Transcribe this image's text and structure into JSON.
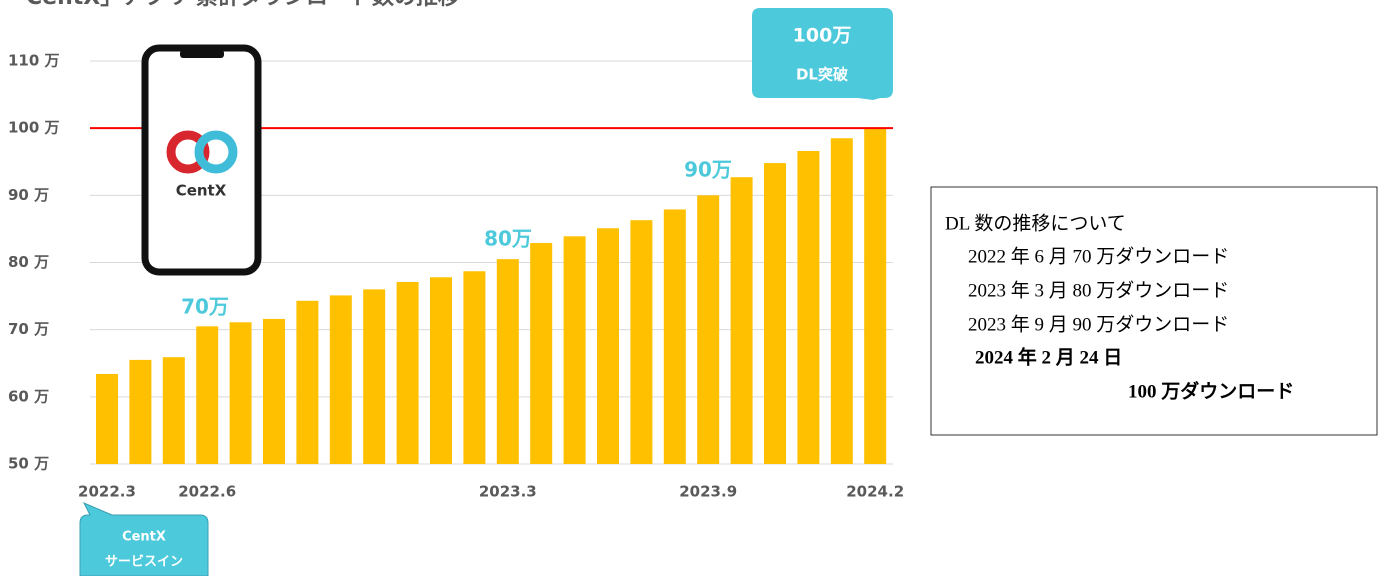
{
  "chart_data": {
    "type": "bar",
    "title": "「CentX」アプリ 累計ダウンロード数の推移",
    "categories": [
      "2022.3",
      null,
      null,
      "2022.6",
      null,
      null,
      null,
      null,
      null,
      null,
      null,
      null,
      "2023.3",
      null,
      null,
      null,
      null,
      null,
      "2023.9",
      null,
      null,
      null,
      null,
      "2024.2"
    ],
    "values": [
      63.4,
      65.5,
      65.9,
      70.5,
      71.1,
      71.6,
      74.3,
      75.1,
      76.0,
      77.1,
      77.8,
      78.7,
      80.5,
      82.9,
      83.9,
      85.1,
      86.3,
      87.9,
      90.0,
      92.7,
      94.8,
      96.6,
      98.5,
      100
    ],
    "color": "#ffc000",
    "ylim": [
      50,
      110
    ],
    "yticks": [
      {
        "value": 50,
        "label": "50 万"
      },
      {
        "value": 60,
        "label": "60 万"
      },
      {
        "value": 70,
        "label": "70 万"
      },
      {
        "value": 80,
        "label": "80 万"
      },
      {
        "value": 90,
        "label": "90 万"
      },
      {
        "value": 100,
        "label": "100 万"
      },
      {
        "value": 110,
        "label": "110 万"
      }
    ],
    "grid": true,
    "reference_line": {
      "value": 100,
      "color": "#ff0000"
    },
    "annotations": [
      "70万",
      "80万",
      "90万"
    ],
    "callout_top": [
      "100万",
      "DL突破"
    ],
    "callout_bottom": [
      "CentX",
      "サービスイン"
    ],
    "logo_text": "CentX"
  },
  "notes": {
    "heading": "DL 数の推移について",
    "lines": [
      "2022 年 6 月  70 万ダウンロード",
      "2023 年 3 月  80 万ダウンロード",
      "2023 年 9 月  90 万ダウンロード"
    ],
    "bold_lines": [
      "2024 年 2 月 24 日",
      "100 万ダウンロード"
    ]
  }
}
